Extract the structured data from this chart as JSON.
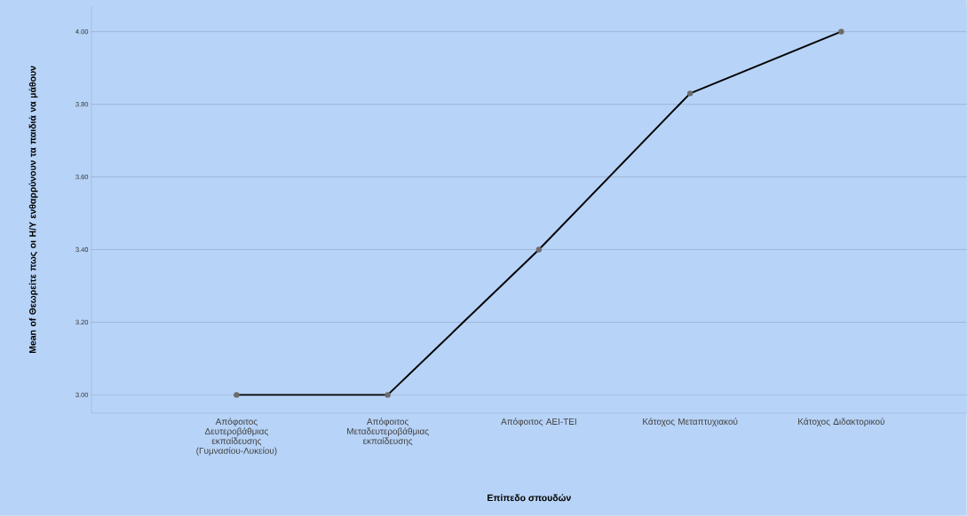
{
  "chart_data": {
    "type": "line",
    "categories": [
      "Απόφοιτος Δευτεροβάθμιας εκπαίδευσης (Γυμνασίου-Λυκείου)",
      "Απόφοιτος Μεταδευτεροβάθμιας εκπαίδευσης",
      "Απόφοιτος ΑΕΙ-ΤΕΙ",
      "Κάτοχος Μεταπτυχιακού",
      "Κάτοχος Διδακτορικού"
    ],
    "series": [
      {
        "color": "#000000",
        "values": [
          3.0,
          3.0,
          3.4,
          3.83,
          4.0
        ]
      }
    ],
    "xlabel": "Επίπεδο σπουδών",
    "ylabel": "Mean of Θεωρείτε πως οι Η/Υ ενθαρρύνουν τα παιδιά να μάθουν",
    "ylim": [
      2.95,
      4.07
    ],
    "yticks": [
      {
        "value": 3.0,
        "label": "3.00"
      },
      {
        "value": 3.2,
        "label": "3.20"
      },
      {
        "value": 3.4,
        "label": "3.40"
      },
      {
        "value": 3.6,
        "label": "3.60"
      },
      {
        "value": 3.8,
        "label": "3.80"
      },
      {
        "value": 4.0,
        "label": "4.00"
      }
    ],
    "grid": "y",
    "marker": "circle",
    "line_style": "solid"
  }
}
